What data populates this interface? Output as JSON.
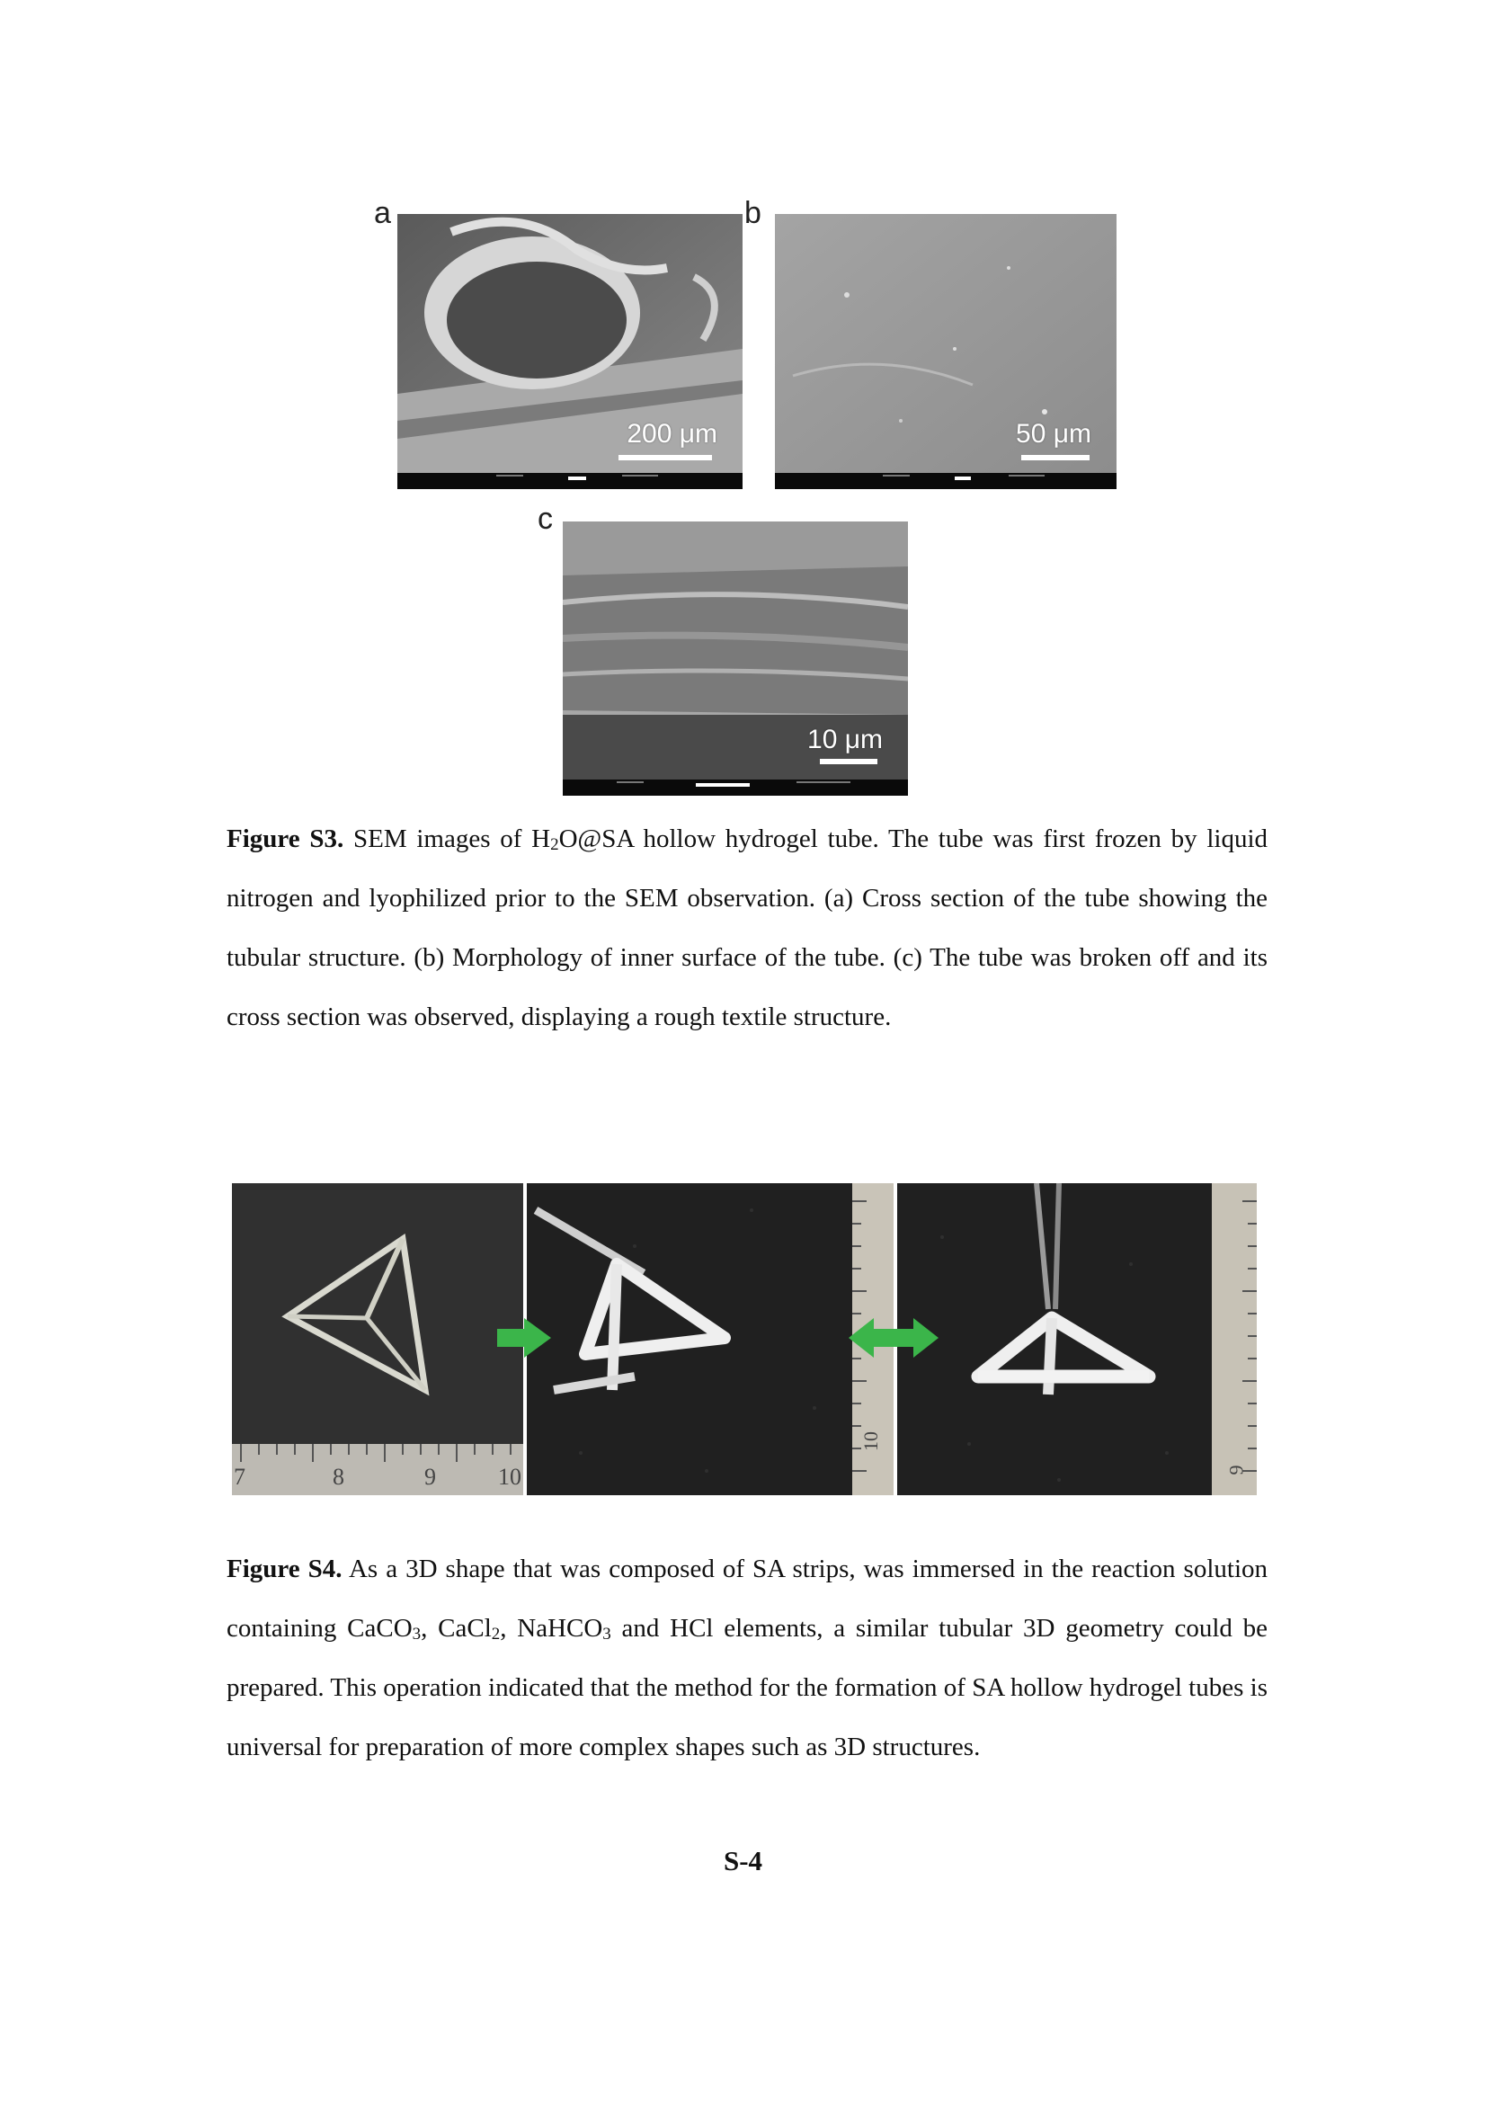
{
  "figure_s3": {
    "panels": [
      {
        "letter": "a",
        "scale_label": "200 μm"
      },
      {
        "letter": "b",
        "scale_label": "50 μm"
      },
      {
        "letter": "c",
        "scale_label": "10 μm"
      }
    ],
    "caption": {
      "label": "Figure S3.",
      "text_before_h2o": " SEM images of H",
      "h2o_sub": "2",
      "text_after_h2o": "O@SA hollow hydrogel tube. The tube was first frozen by liquid nitrogen and lyophilized prior to the SEM observation. (a) Cross section of the tube showing the tubular structure. (b) Morphology of inner surface of the tube. (c) The tube was broken off and its cross section was observed, displaying a rough textile structure."
    }
  },
  "figure_s4": {
    "ruler_labels_left": [
      "7",
      "8",
      "9",
      "10"
    ],
    "ruler_label_middle": "10",
    "ruler_label_right": "9",
    "arrow_color": "#3bb54a",
    "caption": {
      "label": "Figure S4.",
      "t1": " As a 3D shape that was composed of SA strips, was immersed in the reaction solution containing CaCO",
      "s1": "3",
      "t2": ", CaCl",
      "s2": "2",
      "t3": ", NaHCO",
      "s3": "3",
      "t4": " and HCl elements, a similar tubular 3D geometry could be prepared. This operation indicated that the method for the formation of SA hollow hydrogel tubes is universal for preparation of more complex shapes such as 3D structures."
    }
  },
  "page_number": "S-4"
}
